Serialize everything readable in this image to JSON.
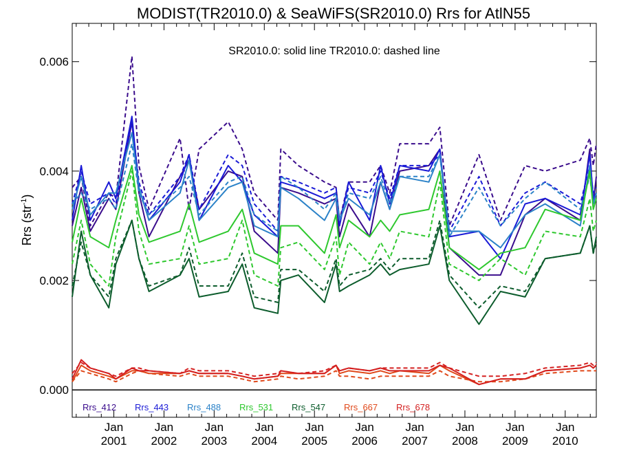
{
  "chart_data": {
    "type": "line",
    "title": "MODIST(TR2010.0) & SeaWiFS(SR2010.0)  Rrs for AtlN55",
    "subtitle": "SR2010.0: solid line   TR2010.0: dashed line",
    "ylabel": "Rrs (str",
    "ylabel_sup": "-1",
    "ylabel_end": ")",
    "ylim": [
      -0.0005,
      0.0067
    ],
    "xlim": [
      2000.17,
      2010.62
    ],
    "yticks": [
      {
        "value": 0.0,
        "label": "0.000"
      },
      {
        "value": 0.002,
        "label": "0.002"
      },
      {
        "value": 0.004,
        "label": "0.004"
      },
      {
        "value": 0.006,
        "label": "0.006"
      }
    ],
    "xticks": [
      {
        "value": 2001.0,
        "top": "Jan",
        "bottom": "2001"
      },
      {
        "value": 2002.0,
        "top": "Jan",
        "bottom": "2002"
      },
      {
        "value": 2003.0,
        "top": "Jan",
        "bottom": "2003"
      },
      {
        "value": 2004.0,
        "top": "Jan",
        "bottom": "2004"
      },
      {
        "value": 2005.0,
        "top": "Jan",
        "bottom": "2005"
      },
      {
        "value": 2006.0,
        "top": "Jan",
        "bottom": "2006"
      },
      {
        "value": 2007.0,
        "top": "Jan",
        "bottom": "2007"
      },
      {
        "value": 2008.0,
        "top": "Jan",
        "bottom": "2008"
      },
      {
        "value": 2009.0,
        "top": "Jan",
        "bottom": "2009"
      },
      {
        "value": 2010.0,
        "top": "Jan",
        "bottom": "2010"
      }
    ],
    "zero_line": 0.0,
    "x": [
      2000.17,
      2000.35,
      2000.53,
      2000.9,
      2001.04,
      2001.36,
      2001.5,
      2001.7,
      2002.32,
      2002.5,
      2002.7,
      2003.28,
      2003.56,
      2003.8,
      2004.27,
      2004.33,
      2004.68,
      2005.2,
      2005.43,
      2005.5,
      2005.68,
      2006.1,
      2006.32,
      2006.5,
      2006.7,
      2007.28,
      2007.5,
      2007.69,
      2008.28,
      2008.71,
      2009.2,
      2009.6,
      2010.3,
      2010.49,
      2010.56,
      2010.62
    ],
    "series": [
      {
        "name": "Rrs_412",
        "color": "#3a0c8c",
        "style": "solid",
        "values": [
          0.003,
          0.0037,
          0.0029,
          0.0035,
          0.0033,
          0.0049,
          0.0036,
          0.0028,
          0.0039,
          0.0042,
          0.0033,
          0.004,
          0.0039,
          0.0029,
          0.0025,
          0.0037,
          0.0036,
          0.0034,
          0.0035,
          0.0028,
          0.0034,
          0.0028,
          0.0038,
          0.0033,
          0.004,
          0.0041,
          0.0044,
          0.0026,
          0.0021,
          0.0021,
          0.0032,
          0.0035,
          0.0031,
          0.0044,
          0.0034,
          0.0039
        ]
      },
      {
        "name": "Rrs_412",
        "color": "#3a0c8c",
        "style": "dashed",
        "values": [
          0.0037,
          0.0039,
          0.003,
          0.0036,
          0.0035,
          0.0061,
          0.0041,
          0.0033,
          0.0046,
          0.0033,
          0.0044,
          0.0049,
          0.0044,
          0.0036,
          0.0031,
          0.0044,
          0.0041,
          0.0038,
          0.0037,
          0.0031,
          0.0038,
          0.0038,
          0.0041,
          0.0036,
          0.0045,
          0.0045,
          0.0048,
          0.003,
          0.0043,
          0.0031,
          0.0041,
          0.004,
          0.0042,
          0.0046,
          0.0041,
          0.0045
        ]
      },
      {
        "name": "Rrs_443",
        "color": "#1a1ad6",
        "style": "solid",
        "values": [
          0.0031,
          0.0041,
          0.0031,
          0.0038,
          0.0035,
          0.005,
          0.0037,
          0.0031,
          0.0038,
          0.0043,
          0.0031,
          0.0041,
          0.0038,
          0.0032,
          0.0028,
          0.0038,
          0.0037,
          0.0035,
          0.0036,
          0.003,
          0.0038,
          0.0031,
          0.0041,
          0.0034,
          0.0041,
          0.004,
          0.0044,
          0.0028,
          0.0029,
          0.0024,
          0.0034,
          0.0035,
          0.0032,
          0.0043,
          0.0035,
          0.0036
        ]
      },
      {
        "name": "Rrs_443",
        "color": "#1a1ad6",
        "style": "dashed",
        "values": [
          0.0034,
          0.004,
          0.0034,
          0.0036,
          0.0034,
          0.0049,
          0.0038,
          0.0032,
          0.0039,
          0.0043,
          0.0033,
          0.0043,
          0.0041,
          0.0034,
          0.0029,
          0.0039,
          0.0038,
          0.0036,
          0.0037,
          0.0031,
          0.0037,
          0.0036,
          0.004,
          0.0035,
          0.0041,
          0.0041,
          0.0043,
          0.0029,
          0.0039,
          0.003,
          0.0036,
          0.0038,
          0.0034,
          0.0041,
          0.0036,
          0.0037
        ]
      },
      {
        "name": "Rrs_488",
        "color": "#2b82c8",
        "style": "solid",
        "values": [
          0.0033,
          0.0039,
          0.0032,
          0.0036,
          0.0036,
          0.0047,
          0.0037,
          0.0031,
          0.0036,
          0.0042,
          0.0031,
          0.0037,
          0.0038,
          0.003,
          0.0028,
          0.0037,
          0.0035,
          0.0031,
          0.0035,
          0.0031,
          0.0035,
          0.0032,
          0.0038,
          0.0033,
          0.0039,
          0.0038,
          0.0043,
          0.0029,
          0.0029,
          0.0026,
          0.0032,
          0.0034,
          0.003,
          0.0041,
          0.0034,
          0.0036
        ]
      },
      {
        "name": "Rrs_488",
        "color": "#2b82c8",
        "style": "dashed",
        "values": [
          0.0034,
          0.0036,
          0.0033,
          0.0035,
          0.0033,
          0.0045,
          0.0036,
          0.0032,
          0.0037,
          0.0039,
          0.0032,
          0.0038,
          0.0039,
          0.0032,
          0.0029,
          0.0039,
          0.0037,
          0.0033,
          0.0036,
          0.0031,
          0.0036,
          0.0035,
          0.0039,
          0.0034,
          0.0039,
          0.0039,
          0.0043,
          0.0028,
          0.0037,
          0.003,
          0.0035,
          0.0038,
          0.0033,
          0.0039,
          0.0034,
          0.0035
        ]
      },
      {
        "name": "Rrs_531",
        "color": "#2ec82e",
        "style": "solid",
        "values": [
          0.0027,
          0.0035,
          0.0028,
          0.0026,
          0.0031,
          0.0041,
          0.0032,
          0.0027,
          0.0029,
          0.0034,
          0.0027,
          0.0029,
          0.0033,
          0.0025,
          0.0023,
          0.003,
          0.003,
          0.0025,
          0.0032,
          0.0026,
          0.0031,
          0.0028,
          0.0031,
          0.0029,
          0.0032,
          0.0033,
          0.004,
          0.0026,
          0.0022,
          0.0025,
          0.0026,
          0.0033,
          0.0031,
          0.004,
          0.0033,
          0.0035
        ]
      },
      {
        "name": "Rrs_531",
        "color": "#2ec82e",
        "style": "dashed",
        "values": [
          0.0023,
          0.0031,
          0.0023,
          0.0019,
          0.0028,
          0.004,
          0.0029,
          0.0023,
          0.0024,
          0.003,
          0.0023,
          0.0024,
          0.0031,
          0.0021,
          0.0019,
          0.0026,
          0.0027,
          0.0022,
          0.0028,
          0.0021,
          0.0027,
          0.0023,
          0.0027,
          0.0024,
          0.0029,
          0.0028,
          0.0038,
          0.0023,
          0.002,
          0.0024,
          0.0021,
          0.0029,
          0.0028,
          0.0035,
          0.0029,
          0.0031
        ]
      },
      {
        "name": "Rrs_547",
        "color": "#0c5c2c",
        "style": "solid",
        "values": [
          0.0017,
          0.0029,
          0.0021,
          0.0015,
          0.0023,
          0.0031,
          0.0024,
          0.0018,
          0.0021,
          0.0024,
          0.0017,
          0.0018,
          0.0023,
          0.0015,
          0.0014,
          0.002,
          0.0021,
          0.0016,
          0.0023,
          0.0018,
          0.0019,
          0.0021,
          0.0023,
          0.0021,
          0.0022,
          0.0023,
          0.003,
          0.002,
          0.0012,
          0.0018,
          0.0017,
          0.0024,
          0.0025,
          0.003,
          0.0025,
          0.0028
        ]
      },
      {
        "name": "Rrs_547",
        "color": "#0c5c2c",
        "style": "dashed",
        "values": [
          0.0019,
          0.0027,
          0.0021,
          0.0017,
          0.0024,
          0.0031,
          0.0024,
          0.0019,
          0.0021,
          0.0026,
          0.0019,
          0.0019,
          0.0025,
          0.0017,
          0.0016,
          0.0022,
          0.0022,
          0.0018,
          0.0024,
          0.0019,
          0.0021,
          0.0022,
          0.0024,
          0.0022,
          0.0024,
          0.0024,
          0.0031,
          0.0021,
          0.0015,
          0.0019,
          0.0018,
          0.0024,
          0.0025,
          0.003,
          0.0025,
          0.0027
        ]
      },
      {
        "name": "Rrs_667",
        "color": "#e0481a",
        "style": "solid",
        "values": [
          0.00015,
          0.00045,
          0.00035,
          0.00025,
          0.0002,
          0.00035,
          0.00035,
          0.0003,
          0.0003,
          0.00035,
          0.0003,
          0.0003,
          0.00025,
          0.0002,
          0.00025,
          0.0003,
          0.0003,
          0.0003,
          0.00045,
          0.0003,
          0.00035,
          0.0003,
          0.00035,
          0.0003,
          0.00035,
          0.0003,
          0.00045,
          0.00035,
          0.0001,
          0.0002,
          0.0002,
          0.00035,
          0.0004,
          0.00045,
          0.0004,
          0.00045
        ]
      },
      {
        "name": "Rrs_667",
        "color": "#e0481a",
        "style": "dashed",
        "values": [
          0.00015,
          0.00035,
          0.0003,
          0.0002,
          0.00015,
          0.0003,
          0.00035,
          0.0003,
          0.00025,
          0.0003,
          0.00025,
          0.00025,
          0.0002,
          0.00015,
          0.0002,
          0.00025,
          0.0002,
          0.00025,
          0.00035,
          0.00025,
          0.00025,
          0.0002,
          0.00025,
          0.00025,
          0.00025,
          0.00025,
          0.00035,
          0.00025,
          0.00015,
          0.00015,
          0.0002,
          0.0003,
          0.00035,
          0.00035,
          0.00035,
          0.00035
        ]
      },
      {
        "name": "Rrs_678",
        "color": "#d42020",
        "style": "solid",
        "values": [
          0.0002,
          0.00055,
          0.0004,
          0.0003,
          0.0002,
          0.0004,
          0.00035,
          0.00035,
          0.0003,
          0.00035,
          0.0003,
          0.0003,
          0.00025,
          0.0002,
          0.00025,
          0.00035,
          0.0003,
          0.0003,
          0.00045,
          0.00035,
          0.0004,
          0.00035,
          0.0004,
          0.00035,
          0.00035,
          0.00035,
          0.00045,
          0.0004,
          0.0001,
          0.0002,
          0.0002,
          0.00035,
          0.0004,
          0.00045,
          0.0004,
          0.00045
        ]
      },
      {
        "name": "Rrs_678",
        "color": "#d42020",
        "style": "dashed",
        "values": [
          0.0003,
          0.0005,
          0.0004,
          0.0003,
          0.00025,
          0.0004,
          0.0004,
          0.00035,
          0.0003,
          0.0004,
          0.00035,
          0.00035,
          0.0003,
          0.00025,
          0.0003,
          0.00035,
          0.0003,
          0.00035,
          0.00045,
          0.00035,
          0.0004,
          0.00035,
          0.0004,
          0.0004,
          0.0004,
          0.0004,
          0.0005,
          0.0004,
          0.00025,
          0.00025,
          0.0003,
          0.0004,
          0.00045,
          0.0005,
          0.00045,
          0.0005
        ]
      }
    ],
    "legend": [
      {
        "label": "Rrs_412",
        "color": "#3a0c8c"
      },
      {
        "label": "Rrs_443",
        "color": "#1a1ad6"
      },
      {
        "label": "Rrs_488",
        "color": "#2b82c8"
      },
      {
        "label": "Rrs_531",
        "color": "#2ec82e"
      },
      {
        "label": "Rrs_547",
        "color": "#0c5c2c"
      },
      {
        "label": "Rrs_667",
        "color": "#e0481a"
      },
      {
        "label": "Rrs_678",
        "color": "#d42020"
      }
    ],
    "legend_placement": "bottom-left inside",
    "grid": false
  }
}
